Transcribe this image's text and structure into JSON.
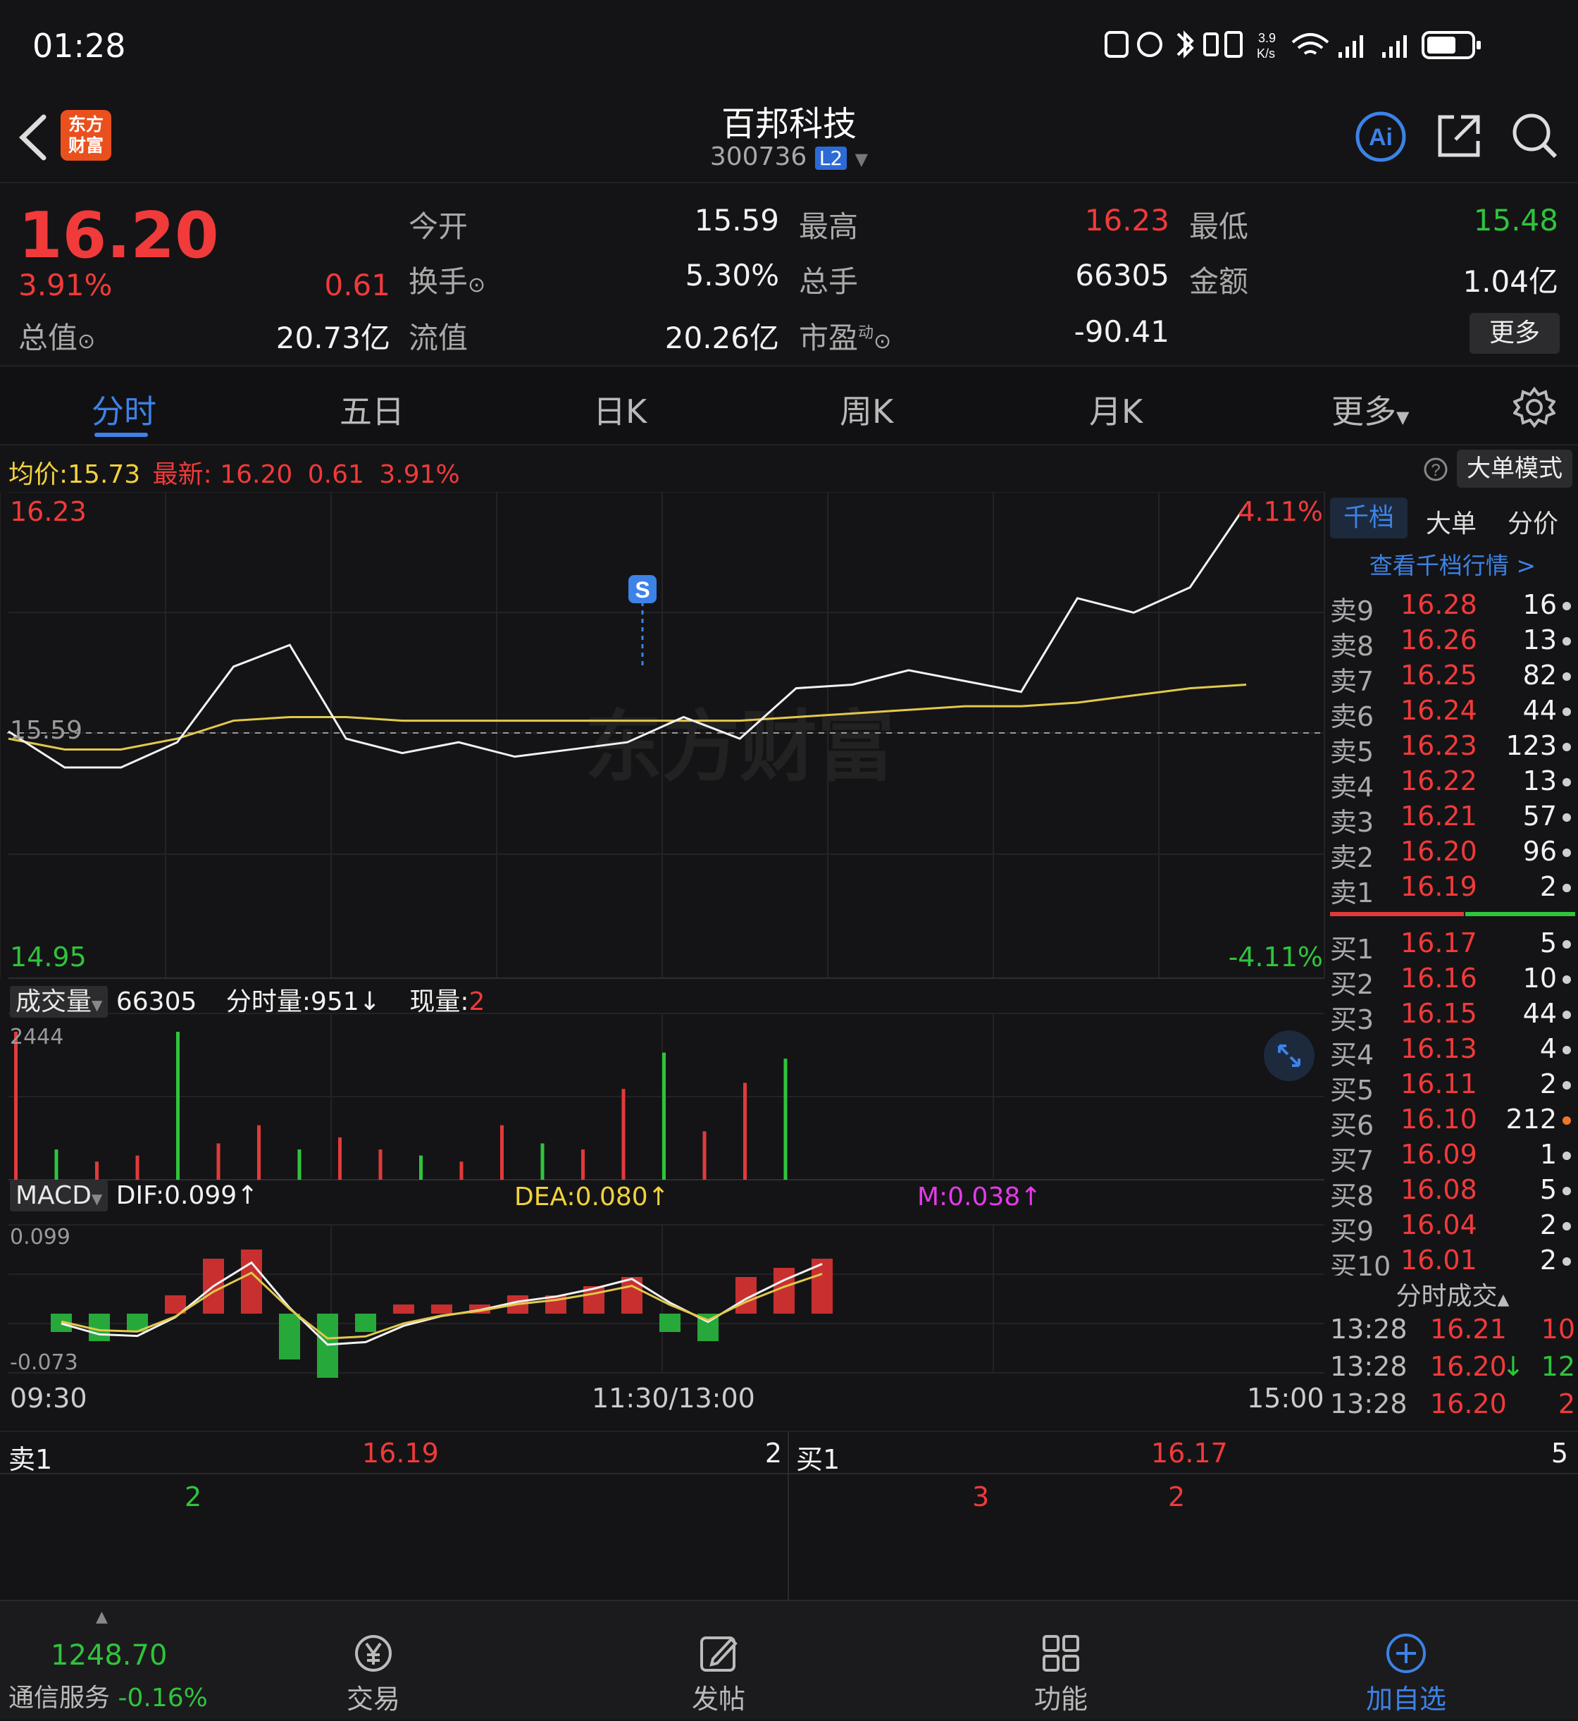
{
  "status": {
    "time": "01:28",
    "net_speed": "3.9\nK/s"
  },
  "header": {
    "title": "百邦科技",
    "code": "300736",
    "badge": "L2",
    "logo_text": "东方财富"
  },
  "quote": {
    "price": "16.20",
    "pct": "3.91%",
    "change": "0.61",
    "mktcap_label": "总值",
    "mktcap": "20.73亿",
    "open_label": "今开",
    "open": "15.59",
    "high_label": "最高",
    "high": "16.23",
    "low_label": "最低",
    "low": "15.48",
    "turnover_label": "换手",
    "turnover": "5.30%",
    "volume_label": "总手",
    "volume": "66305",
    "amount_label": "金额",
    "amount": "1.04亿",
    "float_label": "流值",
    "float": "20.26亿",
    "pe_label": "市盈",
    "pe_sup": "动",
    "pe": "-90.41",
    "more": "更多"
  },
  "tabs": [
    "分时",
    "五日",
    "日K",
    "周K",
    "月K",
    "更多"
  ],
  "infobar": {
    "avg_label": "均价:",
    "avg": "15.73",
    "latest_label": "最新:",
    "latest": "16.20",
    "chg": "0.61",
    "pct": "3.91%",
    "mode": "大单模式"
  },
  "chart": {
    "y_max": "16.23",
    "y_min": "14.95",
    "pct_max": "4.11%",
    "pct_min": "-4.11%",
    "ref": "15.59",
    "signal": "S",
    "watermark": "东方财富",
    "vol_label": "成交量",
    "vol_total": "66305",
    "vol_min_label": "分时量:951",
    "vol_now_label": "现量:",
    "vol_now": "2",
    "vol_max": "2444",
    "macd_label": "MACD",
    "dif": "DIF:0.099",
    "dea": "DEA:0.080",
    "m": "M:0.038",
    "macd_max": "0.099",
    "macd_min": "-0.073",
    "t_start": "09:30",
    "t_mid": "11:30/13:00",
    "t_end": "15:00"
  },
  "chart_data": {
    "type": "line",
    "title": "",
    "series": [
      {
        "name": "最新",
        "x": [
          "09:30",
          "09:40",
          "09:50",
          "10:00",
          "10:10",
          "10:20",
          "10:30",
          "10:40",
          "10:50",
          "11:00",
          "11:10",
          "11:20",
          "11:30",
          "13:00",
          "13:10",
          "13:20",
          "13:30",
          "13:40",
          "13:50",
          "14:00",
          "14:10",
          "14:20",
          "14:30"
        ],
        "values": [
          15.6,
          15.5,
          15.5,
          15.57,
          15.78,
          15.84,
          15.58,
          15.54,
          15.57,
          15.53,
          15.55,
          15.57,
          15.64,
          15.58,
          15.72,
          15.73,
          15.77,
          15.74,
          15.71,
          15.97,
          15.93,
          16.0,
          16.23
        ]
      },
      {
        "name": "均价",
        "values": [
          15.58,
          15.55,
          15.55,
          15.58,
          15.63,
          15.64,
          15.64,
          15.63,
          15.63,
          15.63,
          15.63,
          15.63,
          15.63,
          15.63,
          15.64,
          15.65,
          15.66,
          15.67,
          15.67,
          15.68,
          15.7,
          15.72,
          15.73
        ]
      }
    ],
    "ylim": [
      14.95,
      16.23
    ],
    "volume": [
      2444,
      500,
      300,
      400,
      2444,
      600,
      900,
      500,
      700,
      500,
      400,
      300,
      900,
      600,
      500,
      1500,
      2100,
      800,
      1600,
      2000
    ],
    "macd": [
      -0.02,
      -0.03,
      -0.02,
      0.02,
      0.06,
      0.07,
      -0.05,
      -0.07,
      -0.02,
      0.01,
      0.01,
      0.01,
      0.02,
      0.02,
      0.03,
      0.04,
      -0.02,
      -0.03,
      0.04,
      0.05,
      0.06
    ]
  },
  "orderbook": {
    "tabs": [
      "千档",
      "大单",
      "分价"
    ],
    "link": "查看千档行情 >",
    "asks": [
      {
        "n": "卖9",
        "p": "16.28",
        "v": "16"
      },
      {
        "n": "卖8",
        "p": "16.26",
        "v": "13"
      },
      {
        "n": "卖7",
        "p": "16.25",
        "v": "82"
      },
      {
        "n": "卖6",
        "p": "16.24",
        "v": "44"
      },
      {
        "n": "卖5",
        "p": "16.23",
        "v": "123"
      },
      {
        "n": "卖4",
        "p": "16.22",
        "v": "13"
      },
      {
        "n": "卖3",
        "p": "16.21",
        "v": "57"
      },
      {
        "n": "卖2",
        "p": "16.20",
        "v": "96"
      },
      {
        "n": "卖1",
        "p": "16.19",
        "v": "2"
      }
    ],
    "bids": [
      {
        "n": "买1",
        "p": "16.17",
        "v": "5"
      },
      {
        "n": "买2",
        "p": "16.16",
        "v": "10"
      },
      {
        "n": "买3",
        "p": "16.15",
        "v": "44"
      },
      {
        "n": "买4",
        "p": "16.13",
        "v": "4"
      },
      {
        "n": "买5",
        "p": "16.11",
        "v": "2"
      },
      {
        "n": "买6",
        "p": "16.10",
        "v": "212"
      },
      {
        "n": "买7",
        "p": "16.09",
        "v": "1"
      },
      {
        "n": "买8",
        "p": "16.08",
        "v": "5"
      },
      {
        "n": "买9",
        "p": "16.04",
        "v": "2"
      },
      {
        "n": "买10",
        "p": "16.01",
        "v": "2"
      }
    ],
    "trades_label": "分时成交",
    "trades": [
      {
        "t": "13:28",
        "p": "16.21",
        "v": "10",
        "arrow": ""
      },
      {
        "t": "13:28",
        "p": "16.20",
        "v": "12",
        "arrow": "↓"
      },
      {
        "t": "13:28",
        "p": "16.20",
        "v": "2",
        "arrow": ""
      }
    ]
  },
  "bottom": {
    "ask_label": "卖1",
    "ask_price": "16.19",
    "ask_vol": "2",
    "bid_label": "买1",
    "bid_price": "16.17",
    "bid_vol": "5",
    "ask_queue": "2",
    "bid_queue_1": "3",
    "bid_queue_2": "2"
  },
  "nav": {
    "index_value": "1248.70",
    "index_name": "通信服务",
    "index_pct": "-0.16%",
    "trade": "交易",
    "post": "发帖",
    "func": "功能",
    "add": "加自选"
  }
}
